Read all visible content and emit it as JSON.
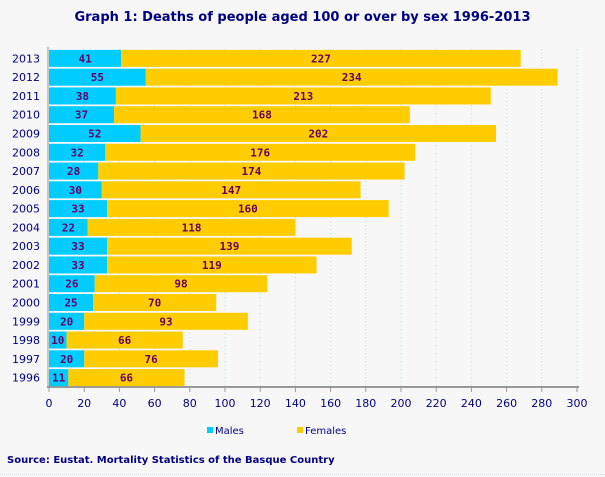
{
  "chart_data": {
    "type": "bar",
    "orientation": "horizontal",
    "stacked": true,
    "title": "Graph 1: Deaths of people aged 100 or over by sex 1996-2013",
    "categories": [
      "2013",
      "2012",
      "2011",
      "2010",
      "2009",
      "2008",
      "2007",
      "2006",
      "2005",
      "2004",
      "2003",
      "2002",
      "2001",
      "2000",
      "1999",
      "1998",
      "1997",
      "1996"
    ],
    "series": [
      {
        "name": "Males",
        "color": "#00ccff",
        "values": [
          41,
          55,
          38,
          37,
          52,
          32,
          28,
          30,
          33,
          22,
          33,
          33,
          26,
          25,
          20,
          10,
          20,
          11
        ]
      },
      {
        "name": "Females",
        "color": "#ffcc00",
        "values": [
          227,
          234,
          213,
          168,
          202,
          176,
          174,
          147,
          160,
          118,
          139,
          119,
          98,
          70,
          93,
          66,
          76,
          66
        ]
      }
    ],
    "xlim": [
      0,
      300
    ],
    "xticks": [
      0,
      20,
      40,
      60,
      80,
      100,
      120,
      140,
      160,
      180,
      200,
      220,
      240,
      260,
      280,
      300
    ],
    "grid": true,
    "legend": "bottom",
    "label_color": "#660066",
    "axis_color": "#000080"
  },
  "source": "Source: Eustat. Mortality Statistics of the Basque Country"
}
